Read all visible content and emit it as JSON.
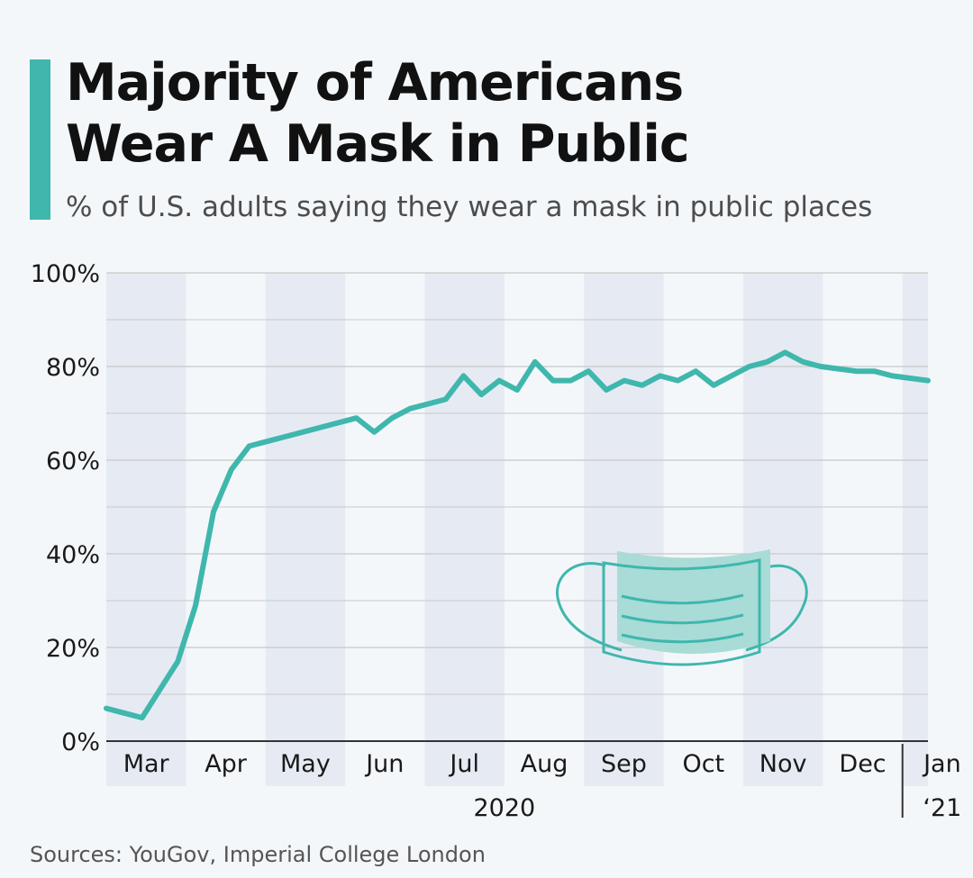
{
  "header": {
    "title_line1": "Majority of Americans",
    "title_line2": "Wear A Mask in Public",
    "subtitle": "% of U.S. adults saying they wear a mask in public places"
  },
  "footer": {
    "source": "Sources: YouGov, Imperial College London"
  },
  "colors": {
    "accent": "#3fb7ad",
    "line": "#3fb7ad",
    "band": "#e6ebf3",
    "grid": "#c8c8c8",
    "mask_fill": "#a9dcd6",
    "mask_outline": "#3fb7ad"
  },
  "illustration": {
    "icon": "face-mask-icon"
  },
  "chart_data": {
    "type": "line",
    "title": "Majority of Americans Wear A Mask in Public",
    "subtitle": "% of U.S. adults saying they wear a mask in public places",
    "xlabel": "",
    "ylabel": "",
    "ylim": [
      0,
      100
    ],
    "y_ticks": [
      0,
      20,
      40,
      60,
      80,
      100
    ],
    "y_tick_labels": [
      "0%",
      "20%",
      "40%",
      "60%",
      "80%",
      "100%"
    ],
    "months": [
      "Mar",
      "Apr",
      "May",
      "Jun",
      "Jul",
      "Aug",
      "Sep",
      "Oct",
      "Nov",
      "Dec",
      "Jan"
    ],
    "year_labels": [
      "2020",
      "‘21"
    ],
    "grid": true,
    "legend": "none",
    "series": [
      {
        "values": [
          7,
          6,
          5,
          11,
          17,
          29,
          49,
          58,
          63,
          64,
          65,
          66,
          67,
          68,
          69,
          66,
          69,
          71,
          72,
          73,
          78,
          74,
          77,
          75,
          81,
          77,
          77,
          79,
          75,
          77,
          76,
          78,
          77,
          79,
          76,
          78,
          80,
          81,
          83,
          81,
          80,
          79.5,
          79,
          79,
          78,
          77.5,
          77
        ]
      }
    ]
  }
}
